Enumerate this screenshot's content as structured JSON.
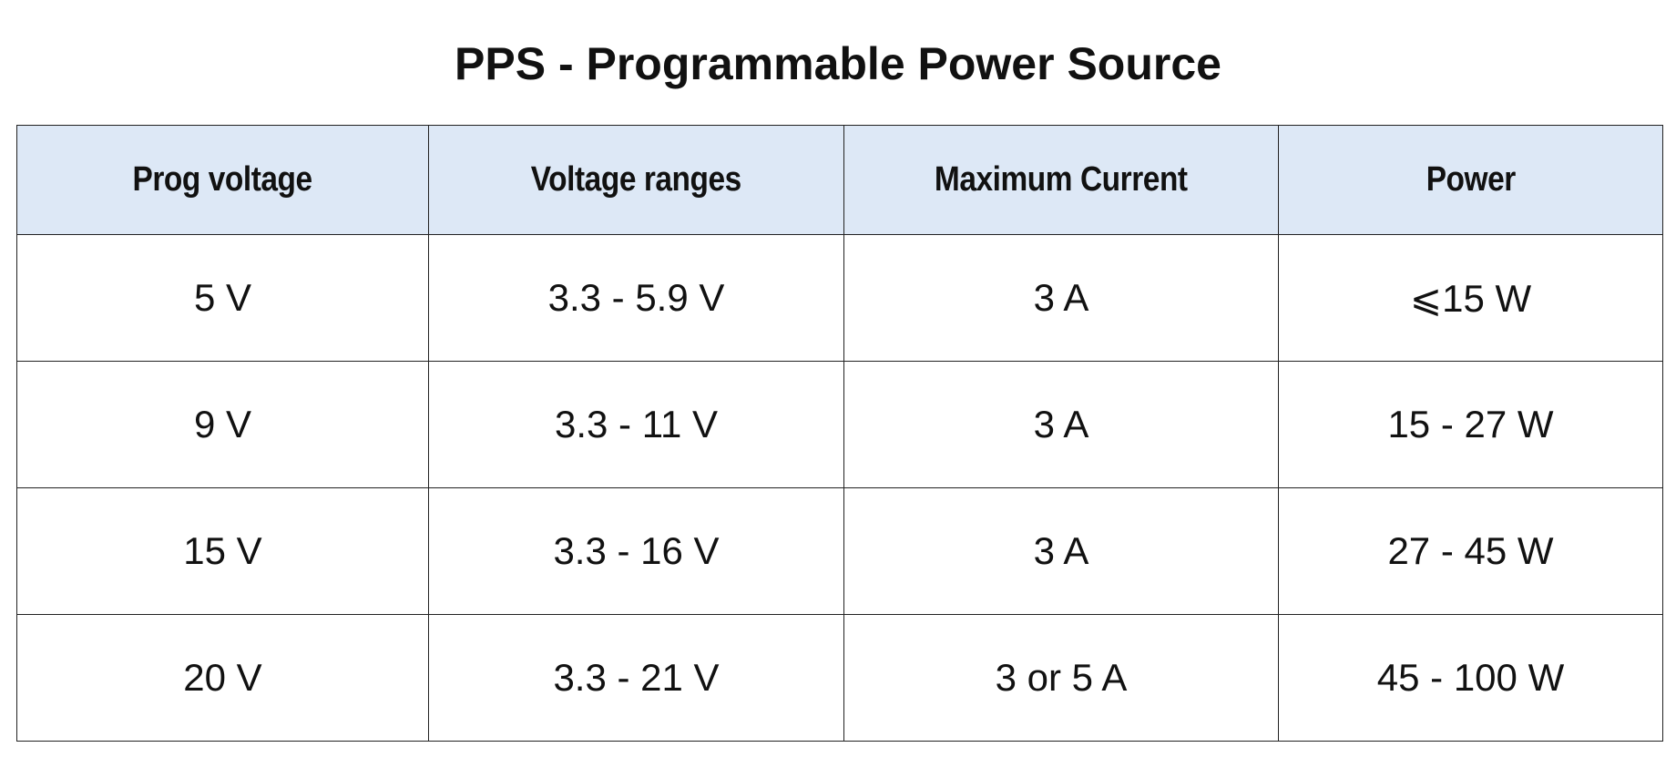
{
  "title": "PPS - Programmable Power Source",
  "table": {
    "header": [
      "Prog voltage",
      "Voltage ranges",
      "Maximum Current",
      "Power"
    ],
    "rows": [
      [
        "5 V",
        "3.3 - 5.9 V",
        "3 A",
        "⩽15 W"
      ],
      [
        "9 V",
        "3.3 - 11 V",
        "3 A",
        "15 - 27 W"
      ],
      [
        "15 V",
        "3.3 - 16 V",
        "3 A",
        "27 - 45 W"
      ],
      [
        "20 V",
        "3.3 - 21 V",
        "3 or 5 A",
        "45 - 100 W"
      ]
    ]
  }
}
